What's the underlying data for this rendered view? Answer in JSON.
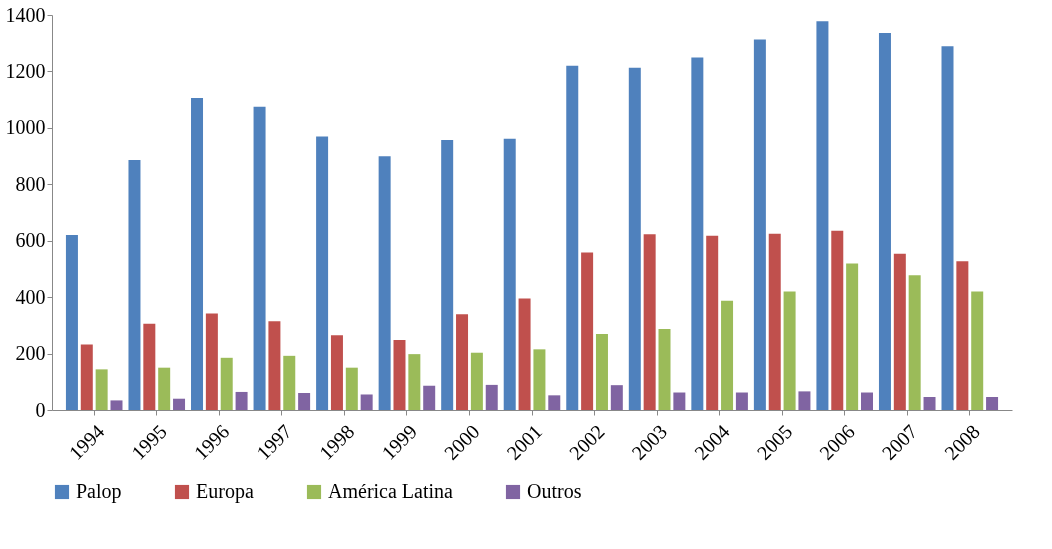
{
  "chart_data": {
    "type": "bar",
    "categories": [
      "1994",
      "1995",
      "1996",
      "1997",
      "1998",
      "1999",
      "2000",
      "2001",
      "2002",
      "2003",
      "2004",
      "2005",
      "2006",
      "2007",
      "2008"
    ],
    "series": [
      {
        "name": "Palop",
        "color": "#4f81bd",
        "values": [
          620,
          886,
          1106,
          1075,
          969,
          899,
          957,
          961,
          1220,
          1213,
          1249,
          1313,
          1378,
          1336,
          1289
        ]
      },
      {
        "name": "Europa",
        "color": "#c0504d",
        "values": [
          232,
          306,
          342,
          315,
          265,
          248,
          339,
          395,
          558,
          623,
          618,
          625,
          635,
          554,
          527
        ]
      },
      {
        "name": "América Latina",
        "color": "#9bbb59",
        "values": [
          144,
          150,
          185,
          192,
          150,
          198,
          203,
          215,
          269,
          287,
          387,
          420,
          519,
          478,
          420
        ]
      },
      {
        "name": "Outros",
        "color": "#8064a2",
        "values": [
          34,
          40,
          64,
          60,
          55,
          86,
          89,
          52,
          88,
          62,
          62,
          66,
          62,
          46,
          46
        ]
      }
    ],
    "ylim": [
      0,
      1400
    ],
    "yticks": [
      0,
      200,
      400,
      600,
      800,
      1000,
      1200,
      1400
    ],
    "grid": false,
    "legend": "bottom"
  }
}
